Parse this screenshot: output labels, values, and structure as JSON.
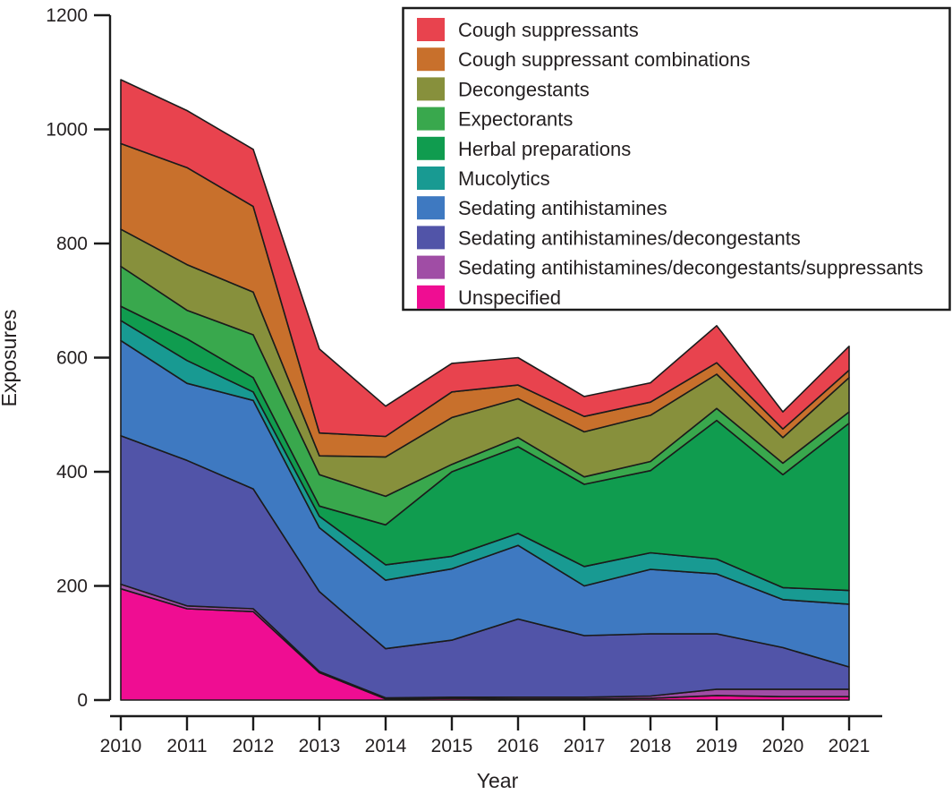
{
  "chart_data": {
    "type": "area",
    "stacked": true,
    "title": "",
    "xlabel": "Year",
    "ylabel": "Exposures",
    "x": [
      2010,
      2011,
      2012,
      2013,
      2014,
      2015,
      2016,
      2017,
      2018,
      2019,
      2020,
      2021
    ],
    "ylim": [
      0,
      1200
    ],
    "yticks": [
      0,
      200,
      400,
      600,
      800,
      1000,
      1200
    ],
    "grid": false,
    "legend_position": "top-right",
    "stack_note": "series listed in legend order; stacking bottom-to-top is the reverse (Unspecified on bottom, Cough suppressants on top)",
    "axis_color": "#1b1b1b",
    "outline_color": "#1b1b1b",
    "series": [
      {
        "name": "Cough suppressants",
        "color": "#e8434e",
        "values": [
          112,
          100,
          100,
          147,
          53,
          50,
          48,
          35,
          34,
          65,
          30,
          42
        ]
      },
      {
        "name": "Cough suppressant combinations",
        "color": "#c8702c",
        "values": [
          150,
          170,
          150,
          40,
          36,
          45,
          24,
          27,
          23,
          20,
          15,
          13
        ]
      },
      {
        "name": "Decongestants",
        "color": "#87903c",
        "values": [
          65,
          80,
          75,
          33,
          69,
          82,
          68,
          79,
          81,
          60,
          45,
          60
        ]
      },
      {
        "name": "Expectorants",
        "color": "#39a84d",
        "values": [
          70,
          50,
          75,
          55,
          50,
          13,
          16,
          13,
          16,
          21,
          20,
          20
        ]
      },
      {
        "name": "Herbal preparations",
        "color": "#109c4f",
        "values": [
          25,
          38,
          25,
          18,
          70,
          148,
          152,
          144,
          144,
          243,
          198,
          293
        ]
      },
      {
        "name": "Mucolytics",
        "color": "#189a92",
        "values": [
          35,
          40,
          15,
          20,
          27,
          22,
          21,
          34,
          29,
          26,
          21,
          24
        ]
      },
      {
        "name": "Sedating antihistamines",
        "color": "#3e79c1",
        "values": [
          167,
          135,
          155,
          112,
          120,
          125,
          129,
          87,
          113,
          105,
          84,
          110
        ]
      },
      {
        "name": "Sedating antihistamines/decongestants",
        "color": "#5154a8",
        "values": [
          260,
          255,
          210,
          140,
          86,
          100,
          137,
          108,
          109,
          97,
          73,
          39
        ]
      },
      {
        "name": "Sedating antihistamines/decongestants/suppressants",
        "color": "#a04da5",
        "values": [
          8,
          5,
          5,
          2,
          2,
          2,
          3,
          3,
          4,
          11,
          13,
          13
        ]
      },
      {
        "name": "Unspecified",
        "color": "#ef0d92",
        "values": [
          195,
          160,
          155,
          48,
          2,
          3,
          2,
          2,
          3,
          8,
          6,
          6
        ]
      }
    ]
  }
}
